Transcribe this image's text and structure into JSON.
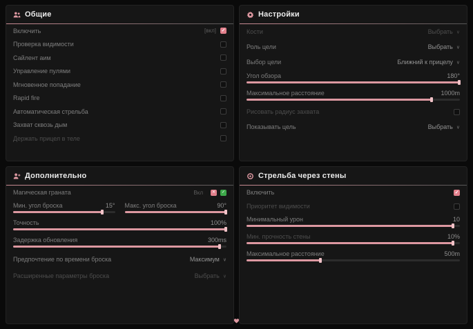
{
  "colors": {
    "background": "#0a0a0a",
    "panel": "#161616",
    "accent": "#dd98a1",
    "checkbox_checked": "#e2808c",
    "green_check": "#3da84a"
  },
  "icons": {
    "chevron_down": "∨",
    "check": "✓",
    "cross": "✕"
  },
  "panels": {
    "general": {
      "title": "Общие",
      "icon": "users-icon",
      "rows": [
        {
          "label": "Включить",
          "keybind": "[вкл]",
          "checked": true
        },
        {
          "label": "Проверка видимости",
          "checked": false
        },
        {
          "label": "Сайлент аим",
          "checked": false
        },
        {
          "label": "Управление пулями",
          "checked": false
        },
        {
          "label": "Мгновенное попадание",
          "checked": false
        },
        {
          "label": "Rapid fire",
          "checked": false
        },
        {
          "label": "Автоматическая стрельба",
          "checked": false
        },
        {
          "label": "Захват сквозь дым",
          "checked": false
        },
        {
          "label": "Держать прицел в теле",
          "checked": false
        }
      ]
    },
    "settings": {
      "title": "Настройки",
      "icon": "gear-icon",
      "bones": {
        "label": "Кости",
        "value": "Выбрать"
      },
      "target_role": {
        "label": "Роль цели",
        "value": "Выбрать"
      },
      "target_choice": {
        "label": "Выбор цели",
        "value": "Ближний к прицелу"
      },
      "fov": {
        "label": "Угол обзора",
        "value": "180°",
        "fill": 100
      },
      "max_distance": {
        "label": "Максимальное расстояние",
        "value": "1000m",
        "fill": 87
      },
      "draw_radius": {
        "label": "Рисовать радиус захвата",
        "checked": false
      },
      "show_target": {
        "label": "Показывать цель",
        "value": "Выбрать"
      }
    },
    "additional": {
      "title": "Дополнительно",
      "icon": "user-plus-icon",
      "magic_grenade": {
        "label": "Магическая граната",
        "status": "Вкл"
      },
      "min_angle": {
        "label": "Мин. угол броска",
        "value": "15°",
        "fill": 88
      },
      "max_angle": {
        "label": "Макс. угол броска",
        "value": "90°",
        "fill": 100
      },
      "accuracy": {
        "label": "Точность",
        "value": "100%",
        "fill": 100
      },
      "update_delay": {
        "label": "Задержка обновления",
        "value": "300ms",
        "fill": 97
      },
      "throw_time": {
        "label": "Предпочтение по времени броска",
        "value": "Максимум"
      },
      "advanced": {
        "label": "Расширенные параметры броска",
        "value": "Выбрать"
      }
    },
    "wallbang": {
      "title": "Стрельба через стены",
      "icon": "target-icon",
      "enable": {
        "label": "Включить",
        "checked": true
      },
      "visibility_priority": {
        "label": "Приоритет видимости",
        "checked": false
      },
      "min_damage": {
        "label": "Минимальный урон",
        "value": "10",
        "fill": 97
      },
      "wall_strength": {
        "label": "Мин. прочность стены",
        "value": "10%",
        "fill": 97
      },
      "max_distance": {
        "label": "Максимальное расстояние",
        "value": "500m",
        "fill": 35
      }
    }
  }
}
